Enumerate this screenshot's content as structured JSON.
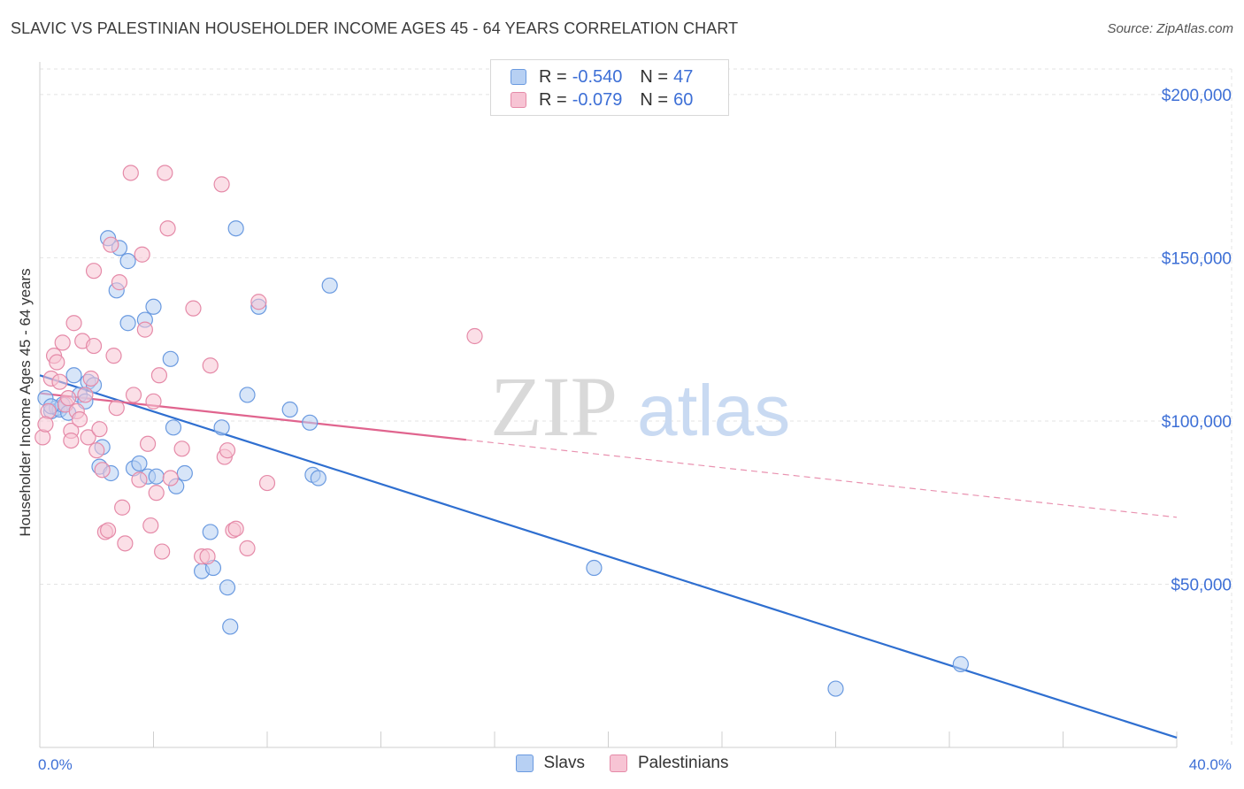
{
  "title": "SLAVIC VS PALESTINIAN HOUSEHOLDER INCOME AGES 45 - 64 YEARS CORRELATION CHART",
  "source": "Source: ZipAtlas.com",
  "watermark": {
    "zip": "ZIP",
    "atlas": "atlas"
  },
  "legend": {
    "rows": [
      {
        "r_label": "R =",
        "r_value": "-0.540",
        "n_label": "N =",
        "n_value": "47",
        "fill": "#b7d0f3",
        "stroke": "#6a9ae0"
      },
      {
        "r_label": "R =",
        "r_value": "-0.079",
        "n_label": "N =",
        "n_value": "60",
        "fill": "#f7c4d4",
        "stroke": "#e58aa8"
      }
    ]
  },
  "bottom_legend": [
    {
      "label": "Slavs",
      "fill": "#b7d0f3",
      "stroke": "#6a9ae0"
    },
    {
      "label": "Palestinians",
      "fill": "#f7c4d4",
      "stroke": "#e58aa8"
    }
  ],
  "chart_data": {
    "type": "scatter",
    "title": "SLAVIC VS PALESTINIAN HOUSEHOLDER INCOME AGES 45 - 64 YEARS CORRELATION CHART",
    "xlabel": "",
    "ylabel": "Householder Income Ages 45 - 64 years",
    "xlim": [
      0,
      40
    ],
    "ylim": [
      0,
      210000
    ],
    "x_tick_labels": [
      {
        "value": 0,
        "label": "0.0%"
      },
      {
        "value": 40,
        "label": "40.0%"
      }
    ],
    "y_ticks": [
      {
        "value": 50000,
        "label": "$50,000"
      },
      {
        "value": 100000,
        "label": "$100,000"
      },
      {
        "value": 150000,
        "label": "$150,000"
      },
      {
        "value": 200000,
        "label": "$200,000"
      }
    ],
    "grid": "horizontal dashed",
    "series": [
      {
        "name": "Slavs",
        "color": "#6a9ae0",
        "fill": "#b7d0f3",
        "trend": {
          "x0": 0,
          "y0": 114000,
          "x1": 40,
          "y1": 3000,
          "dashed_from": null,
          "line_color": "#2f6fd0"
        },
        "points": [
          [
            0.2,
            107000
          ],
          [
            0.4,
            103000
          ],
          [
            0.6,
            104000
          ],
          [
            0.7,
            103500
          ],
          [
            0.8,
            105000
          ],
          [
            1.0,
            102500
          ],
          [
            1.2,
            114000
          ],
          [
            1.4,
            108000
          ],
          [
            1.6,
            106000
          ],
          [
            1.7,
            112000
          ],
          [
            1.9,
            111000
          ],
          [
            2.1,
            86000
          ],
          [
            2.2,
            92000
          ],
          [
            2.4,
            156000
          ],
          [
            2.5,
            84000
          ],
          [
            2.7,
            140000
          ],
          [
            2.8,
            153000
          ],
          [
            3.1,
            149000
          ],
          [
            3.1,
            130000
          ],
          [
            3.3,
            85500
          ],
          [
            3.5,
            87000
          ],
          [
            3.7,
            131000
          ],
          [
            3.8,
            83000
          ],
          [
            4.0,
            135000
          ],
          [
            4.1,
            83000
          ],
          [
            4.6,
            119000
          ],
          [
            4.7,
            98000
          ],
          [
            4.8,
            80000
          ],
          [
            5.1,
            84000
          ],
          [
            5.7,
            54000
          ],
          [
            6.0,
            66000
          ],
          [
            6.1,
            55000
          ],
          [
            6.4,
            98000
          ],
          [
            6.6,
            49000
          ],
          [
            6.7,
            37000
          ],
          [
            6.9,
            159000
          ],
          [
            7.3,
            108000
          ],
          [
            7.7,
            135000
          ],
          [
            8.8,
            103500
          ],
          [
            9.5,
            99500
          ],
          [
            9.6,
            83500
          ],
          [
            9.8,
            82500
          ],
          [
            10.2,
            141500
          ],
          [
            19.5,
            55000
          ],
          [
            28.0,
            18000
          ],
          [
            32.4,
            25500
          ],
          [
            0.4,
            104500
          ]
        ]
      },
      {
        "name": "Palestinians",
        "color": "#e58aa8",
        "fill": "#f7c4d4",
        "trend": {
          "x0": 0,
          "y0": 108500,
          "x1": 40,
          "y1": 70500,
          "solid_until": 15,
          "line_color": "#e0648e"
        },
        "points": [
          [
            0.1,
            95000
          ],
          [
            0.3,
            103000
          ],
          [
            0.4,
            113000
          ],
          [
            0.5,
            120000
          ],
          [
            0.6,
            118000
          ],
          [
            0.7,
            112000
          ],
          [
            0.8,
            124000
          ],
          [
            0.9,
            105000
          ],
          [
            1.0,
            107000
          ],
          [
            1.1,
            97000
          ],
          [
            1.1,
            94000
          ],
          [
            1.2,
            130000
          ],
          [
            1.3,
            103000
          ],
          [
            1.4,
            100500
          ],
          [
            1.5,
            124500
          ],
          [
            1.6,
            108000
          ],
          [
            1.7,
            95000
          ],
          [
            1.8,
            113000
          ],
          [
            1.9,
            123000
          ],
          [
            1.9,
            146000
          ],
          [
            2.0,
            91000
          ],
          [
            2.1,
            97500
          ],
          [
            2.2,
            85000
          ],
          [
            2.3,
            66000
          ],
          [
            2.4,
            66500
          ],
          [
            2.5,
            154000
          ],
          [
            2.6,
            120000
          ],
          [
            2.7,
            104000
          ],
          [
            2.8,
            142500
          ],
          [
            2.9,
            73500
          ],
          [
            3.0,
            62500
          ],
          [
            3.2,
            176000
          ],
          [
            3.3,
            108000
          ],
          [
            3.5,
            82000
          ],
          [
            3.6,
            151000
          ],
          [
            3.7,
            128000
          ],
          [
            3.8,
            93000
          ],
          [
            3.9,
            68000
          ],
          [
            4.0,
            106000
          ],
          [
            4.1,
            78000
          ],
          [
            4.2,
            114000
          ],
          [
            4.3,
            60000
          ],
          [
            4.4,
            176000
          ],
          [
            4.5,
            159000
          ],
          [
            4.6,
            82500
          ],
          [
            5.0,
            91500
          ],
          [
            5.4,
            134500
          ],
          [
            5.7,
            58500
          ],
          [
            5.9,
            58500
          ],
          [
            6.0,
            117000
          ],
          [
            6.4,
            172500
          ],
          [
            6.5,
            89000
          ],
          [
            6.6,
            91000
          ],
          [
            6.8,
            66500
          ],
          [
            6.9,
            67000
          ],
          [
            7.3,
            61000
          ],
          [
            7.7,
            136500
          ],
          [
            8.0,
            81000
          ],
          [
            15.3,
            126000
          ],
          [
            0.2,
            99000
          ]
        ]
      }
    ]
  }
}
